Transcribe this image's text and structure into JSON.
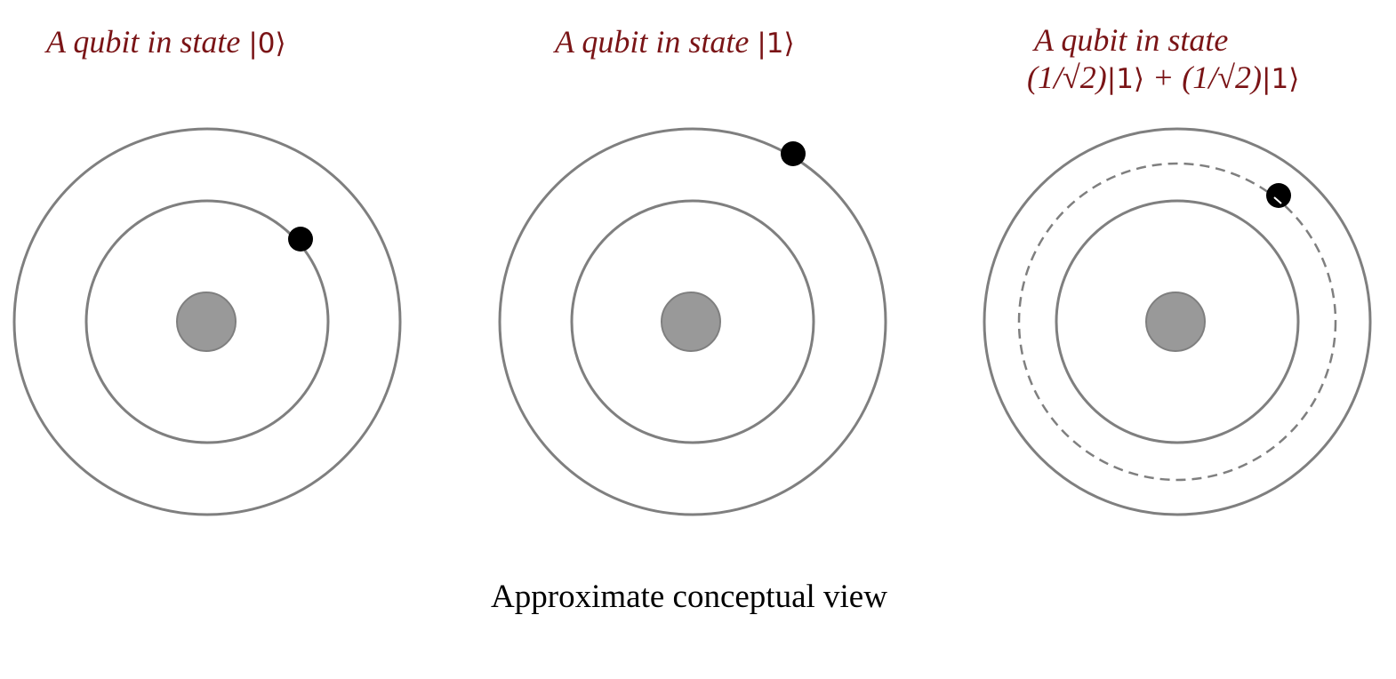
{
  "panels": [
    {
      "title_text": "A qubit in state",
      "ket": "|0⟩",
      "orbit_state": "inner"
    },
    {
      "title_text": "A qubit in state",
      "ket": "|1⟩",
      "orbit_state": "outer"
    },
    {
      "title_line1": "A qubit in state",
      "title_line2_prefix": "(1/√2)",
      "title_line2_ket_a": "|1⟩",
      "title_line2_plus": " + (1/√2)",
      "title_line2_ket_b": "|1⟩",
      "orbit_state": "superposition"
    }
  ],
  "caption": "Approximate conceptual view",
  "colors": {
    "title": "#7a1416",
    "orbit": "#7f7f7f",
    "nucleus": "#999999",
    "electron": "#000000"
  }
}
